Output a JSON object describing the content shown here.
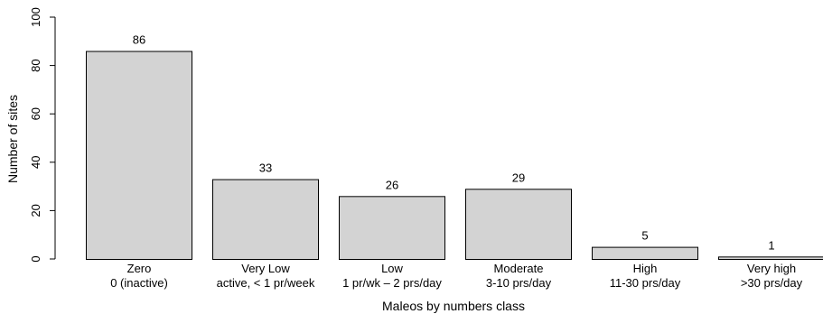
{
  "chart_data": {
    "type": "bar",
    "title": "",
    "xlabel": "Maleos by numbers class",
    "ylabel": "Number of sites",
    "ylim": [
      0,
      100
    ],
    "yticks": [
      0,
      20,
      40,
      60,
      80,
      100
    ],
    "categories": [
      {
        "line1": "Zero",
        "line2": "0 (inactive)"
      },
      {
        "line1": "Very Low",
        "line2": "active, < 1 pr/week"
      },
      {
        "line1": "Low",
        "line2": "1 pr/wk – 2 prs/day"
      },
      {
        "line1": "Moderate",
        "line2": "3-10 prs/day"
      },
      {
        "line1": "High",
        "line2": "11-30 prs/day"
      },
      {
        "line1": "Very high",
        "line2": ">30 prs/day"
      }
    ],
    "values": [
      86,
      33,
      26,
      29,
      5,
      1
    ],
    "bar_color": "#d3d3d3",
    "bar_stroke": "#000000",
    "grid": false
  }
}
